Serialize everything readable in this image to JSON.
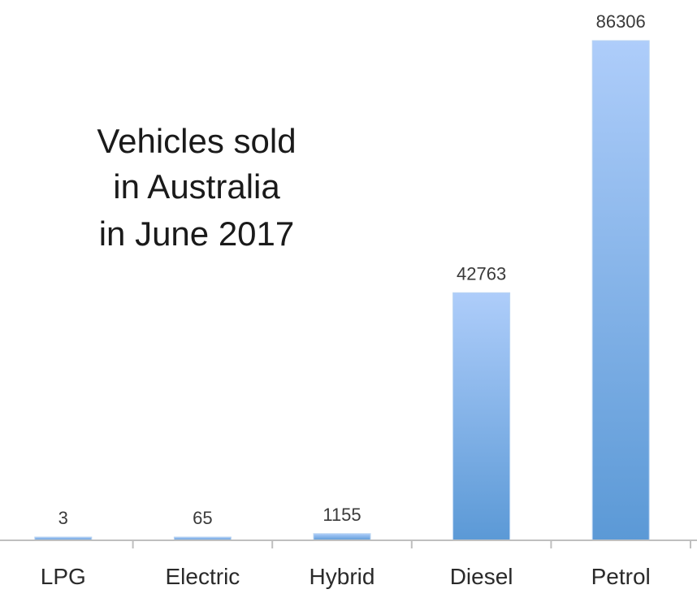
{
  "chart_data": {
    "type": "bar",
    "title": "Vehicles sold in Australia in June 2017",
    "title_lines": [
      "Vehicles sold",
      "in Australia",
      "in June 2017"
    ],
    "categories": [
      "LPG",
      "Electric",
      "Hybrid",
      "Diesel",
      "Petrol"
    ],
    "values": [
      3,
      65,
      1155,
      42763,
      86306
    ],
    "value_labels": [
      "3",
      "65",
      "1155",
      "42763",
      "86306"
    ],
    "xlabel": "",
    "ylabel": "",
    "ylim": [
      0,
      86306
    ],
    "grid": false,
    "legend": "none",
    "colors": {
      "bar_top": "#aecdfa",
      "bar_bottom": "#5b99d6",
      "bar_edge": "#b9d4f2",
      "axis": "#bfbfbf"
    }
  }
}
